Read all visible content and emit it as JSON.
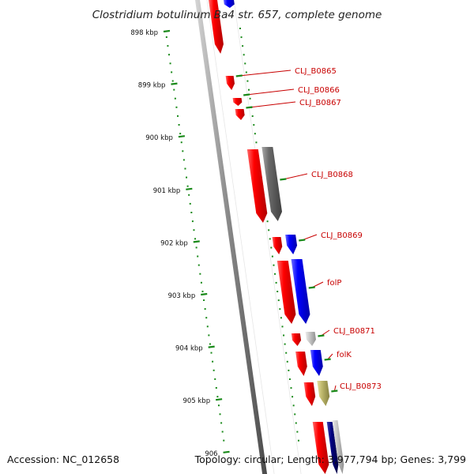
{
  "title": "Clostridium botulinum Ba4 str. 657, complete genome",
  "footer": {
    "accession": "Accession: NC_012658",
    "summary": "Topology: circular; Length: 3,977,794 bp; Genes: 3,799"
  },
  "colors": {
    "backbone": "#8a8a8a",
    "tick": "#1a8a1a",
    "label": "#c80000",
    "gene_red": "#ee0000",
    "gene_blue": "#1010ee",
    "gene_gray": "#707070",
    "gene_lightgray": "#c8c8c8",
    "gene_khaki": "#bdb76b",
    "gene_navy": "#000080"
  },
  "scale": {
    "unit": "kbp",
    "ticks": [
      {
        "label": "898 kbp"
      },
      {
        "label": "899 kbp"
      },
      {
        "label": "900 kbp"
      },
      {
        "label": "901 kbp"
      },
      {
        "label": "902 kbp"
      },
      {
        "label": "903 kbp"
      },
      {
        "label": "904 kbp"
      },
      {
        "label": "905 kbp"
      },
      {
        "label": "906"
      }
    ]
  },
  "genes": [
    {
      "label": "",
      "color": "gene_red"
    },
    {
      "label": "",
      "color": "gene_blue"
    },
    {
      "label": "CLJ_B0865",
      "color": "gene_red"
    },
    {
      "label": "CLJ_B0866",
      "color": "gene_red"
    },
    {
      "label": "CLJ_B0867",
      "color": "gene_red"
    },
    {
      "label": "",
      "color": "gene_red"
    },
    {
      "label": "CLJ_B0868",
      "color": "gene_gray"
    },
    {
      "label": "",
      "color": "gene_red"
    },
    {
      "label": "CLJ_B0869",
      "color": "gene_blue"
    },
    {
      "label": "",
      "color": "gene_red"
    },
    {
      "label": "folP",
      "color": "gene_blue"
    },
    {
      "label": "",
      "color": "gene_red"
    },
    {
      "label": "CLJ_B0871",
      "color": "gene_lightgray"
    },
    {
      "label": "",
      "color": "gene_red"
    },
    {
      "label": "folK",
      "color": "gene_blue"
    },
    {
      "label": "",
      "color": "gene_red"
    },
    {
      "label": "CLJ_B0873",
      "color": "gene_khaki"
    },
    {
      "label": "",
      "color": "gene_red"
    },
    {
      "label": "",
      "color": "gene_navy"
    },
    {
      "label": "",
      "color": "gene_lightgray"
    }
  ]
}
